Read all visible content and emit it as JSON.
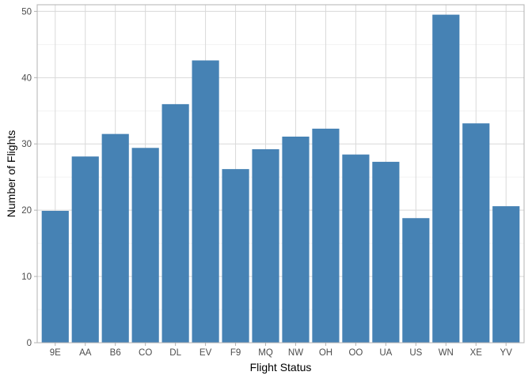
{
  "chart_data": {
    "type": "bar",
    "title": "",
    "xlabel": "Flight Status",
    "ylabel": "Number of Flights",
    "categories": [
      "9E",
      "AA",
      "B6",
      "CO",
      "DL",
      "EV",
      "F9",
      "MQ",
      "NW",
      "OH",
      "OO",
      "UA",
      "US",
      "WN",
      "XE",
      "YV"
    ],
    "values": [
      19.9,
      28.1,
      31.5,
      29.4,
      36.0,
      42.6,
      26.2,
      29.2,
      31.1,
      32.3,
      28.4,
      27.3,
      18.8,
      49.5,
      33.1,
      20.6
    ],
    "ylim": [
      0,
      51
    ],
    "yticks": [
      0,
      10,
      20,
      30,
      40,
      50
    ],
    "grid": true,
    "legend": "none",
    "bar_color": "#4682B4",
    "theme": "light"
  }
}
